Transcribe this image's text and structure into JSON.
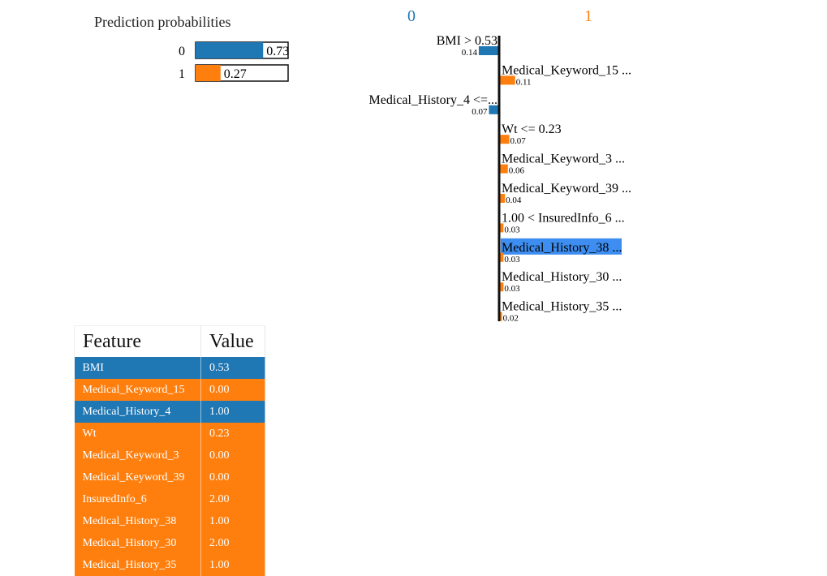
{
  "colors": {
    "class0": "#1f77b4",
    "class1": "#ff7f0e",
    "highlight": "#3d8ef0"
  },
  "probabilities": {
    "title": "Prediction probabilities",
    "items": [
      {
        "label": "0",
        "value": 0.73,
        "value_text": "0.73"
      },
      {
        "label": "1",
        "value": 0.27,
        "value_text": "0.27"
      }
    ]
  },
  "chart_data": {
    "type": "bar",
    "orientation": "horizontal",
    "class_labels": [
      "0",
      "1"
    ],
    "highlighted_label": "Medical_History_38",
    "bars": [
      {
        "label": "BMI > 0.53",
        "value": 0.14,
        "value_text": "0.14",
        "class": "0"
      },
      {
        "label": "Medical_Keyword_15 ...",
        "value": 0.11,
        "value_text": "0.11",
        "class": "1"
      },
      {
        "label": "Medical_History_4 <=...",
        "value": 0.07,
        "value_text": "0.07",
        "class": "0"
      },
      {
        "label": "Wt <= 0.23",
        "value": 0.07,
        "value_text": "0.07",
        "class": "1"
      },
      {
        "label": "Medical_Keyword_3 ...",
        "value": 0.06,
        "value_text": "0.06",
        "class": "1"
      },
      {
        "label": "Medical_Keyword_39 ...",
        "value": 0.04,
        "value_text": "0.04",
        "class": "1"
      },
      {
        "label": "1.00 < InsuredInfo_6 ...",
        "value": 0.03,
        "value_text": "0.03",
        "class": "1"
      },
      {
        "label": "Medical_History_38 ...",
        "value": 0.03,
        "value_text": "0.03",
        "class": "1",
        "highlighted": true
      },
      {
        "label": "Medical_History_30 ...",
        "value": 0.03,
        "value_text": "0.03",
        "class": "1"
      },
      {
        "label": "Medical_History_35 ...",
        "value": 0.02,
        "value_text": "0.02",
        "class": "1"
      }
    ]
  },
  "table": {
    "headers": [
      "Feature",
      "Value"
    ],
    "rows": [
      {
        "feature": "BMI",
        "value": "0.53",
        "class": "0"
      },
      {
        "feature": "Medical_Keyword_15",
        "value": "0.00",
        "class": "1"
      },
      {
        "feature": "Medical_History_4",
        "value": "1.00",
        "class": "0"
      },
      {
        "feature": "Wt",
        "value": "0.23",
        "class": "1"
      },
      {
        "feature": "Medical_Keyword_3",
        "value": "0.00",
        "class": "1"
      },
      {
        "feature": "Medical_Keyword_39",
        "value": "0.00",
        "class": "1"
      },
      {
        "feature": "InsuredInfo_6",
        "value": "2.00",
        "class": "1"
      },
      {
        "feature": "Medical_History_38",
        "value": "1.00",
        "class": "1"
      },
      {
        "feature": "Medical_History_30",
        "value": "2.00",
        "class": "1"
      },
      {
        "feature": "Medical_History_35",
        "value": "1.00",
        "class": "1"
      }
    ]
  }
}
